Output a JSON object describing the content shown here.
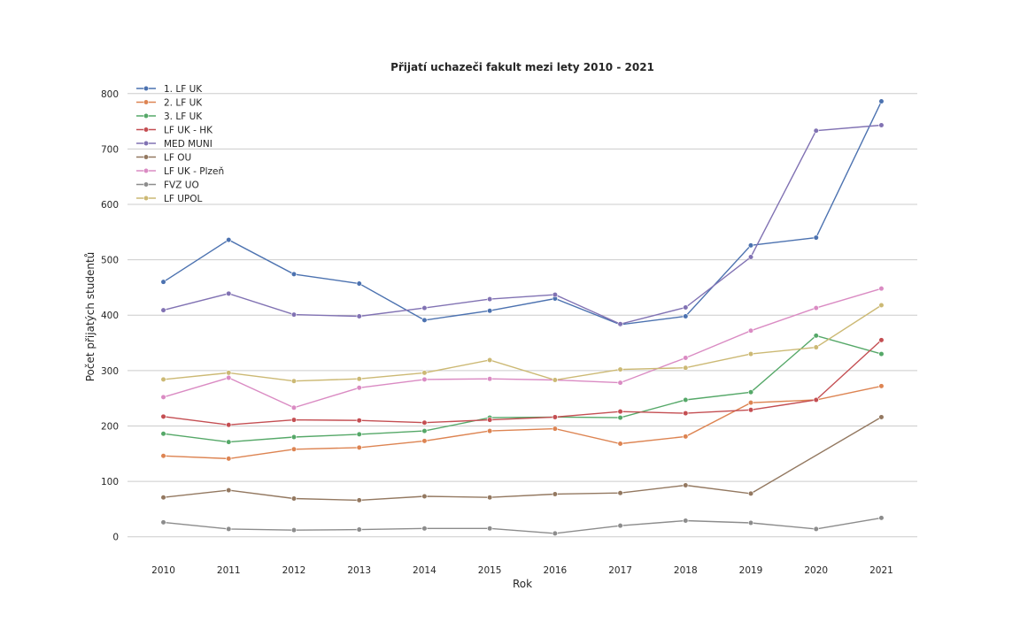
{
  "chart_data": {
    "type": "line",
    "title": "Přijatí uchazeči fakult mezi lety 2010 - 2021",
    "xlabel": "Rok",
    "ylabel": "Počet přijatých studentů",
    "x": [
      2010,
      2011,
      2012,
      2013,
      2014,
      2015,
      2016,
      2017,
      2018,
      2019,
      2020,
      2021
    ],
    "ylim": [
      -50,
      830
    ],
    "yticks": [
      0,
      100,
      200,
      300,
      400,
      500,
      600,
      700,
      800
    ],
    "grid": "horizontal",
    "legend_position": "top-left",
    "series": [
      {
        "name": "1. LF UK",
        "color": "#4c72b0",
        "values": [
          460,
          536,
          474,
          457,
          391,
          408,
          430,
          383,
          398,
          526,
          540,
          786
        ]
      },
      {
        "name": "2. LF UK",
        "color": "#dd8452",
        "values": [
          146,
          141,
          158,
          161,
          173,
          191,
          195,
          168,
          181,
          242,
          247,
          272
        ]
      },
      {
        "name": "3. LF UK",
        "color": "#55a868",
        "values": [
          186,
          171,
          180,
          185,
          191,
          215,
          216,
          215,
          247,
          261,
          363,
          330
        ]
      },
      {
        "name": "LF UK - HK",
        "color": "#c44e52",
        "values": [
          217,
          202,
          211,
          210,
          206,
          211,
          216,
          226,
          223,
          229,
          247,
          355
        ]
      },
      {
        "name": "MED MUNI",
        "color": "#8172b3",
        "values": [
          409,
          439,
          401,
          398,
          413,
          429,
          437,
          384,
          414,
          505,
          733,
          743
        ]
      },
      {
        "name": "LF OU",
        "color": "#937860",
        "values": [
          71,
          84,
          69,
          66,
          73,
          71,
          77,
          79,
          93,
          78,
          null,
          216
        ]
      },
      {
        "name": "LF UK - Plzeň",
        "color": "#da8bc3",
        "values": [
          252,
          287,
          233,
          269,
          284,
          285,
          283,
          278,
          323,
          372,
          413,
          448
        ]
      },
      {
        "name": "FVZ UO",
        "color": "#8c8c8c",
        "values": [
          26,
          14,
          12,
          13,
          15,
          15,
          6,
          20,
          29,
          25,
          14,
          34
        ]
      },
      {
        "name": "LF UPOL",
        "color": "#ccb974",
        "values": [
          284,
          296,
          281,
          285,
          296,
          319,
          283,
          302,
          305,
          330,
          342,
          418
        ]
      }
    ]
  }
}
